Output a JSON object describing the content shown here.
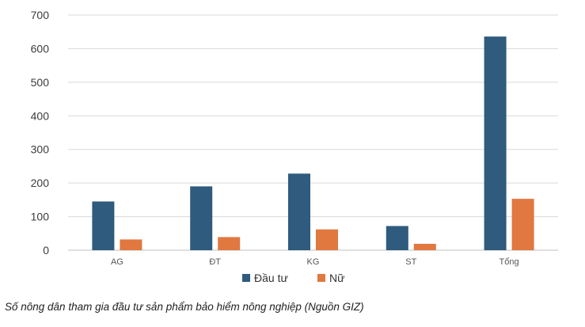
{
  "caption": "Số nông dân tham gia đầu tư sản phẩm bảo hiểm nông nghiệp (Nguồn GIZ)",
  "chart_data": {
    "type": "bar",
    "title": "",
    "xlabel": "",
    "ylabel": "",
    "categories": [
      "AG",
      "ĐT",
      "KG",
      "ST",
      "Tổng"
    ],
    "series": [
      {
        "name": "Đầu tư",
        "color": "#2e5b7e",
        "values": [
          145,
          190,
          228,
          72,
          636
        ]
      },
      {
        "name": "Nữ",
        "color": "#e07840",
        "values": [
          32,
          39,
          62,
          19,
          153
        ]
      }
    ],
    "ylim": [
      0,
      700
    ],
    "yticks": [
      0,
      100,
      200,
      300,
      400,
      500,
      600,
      700
    ],
    "grid": true,
    "legend": "bottom-center"
  }
}
